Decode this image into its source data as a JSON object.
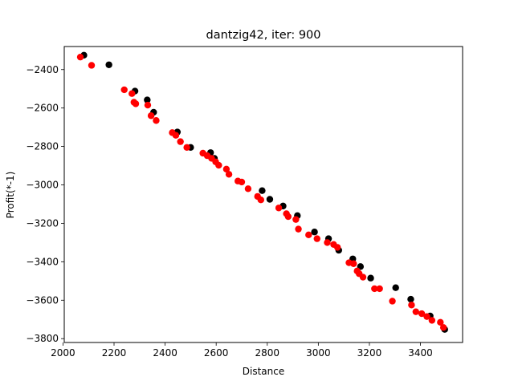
{
  "chart_data": {
    "type": "scatter",
    "title": "dantzig42, iter: 900",
    "xlabel": "Distance",
    "ylabel": "Profit(*-1)",
    "xlim": [
      2005,
      3565
    ],
    "ylim": [
      -3820,
      -2280
    ],
    "xticks": [
      2000,
      2200,
      2400,
      2600,
      2800,
      3000,
      3200,
      3400
    ],
    "yticks": [
      -2400,
      -2600,
      -2800,
      -3000,
      -3200,
      -3400,
      -3600,
      -3800
    ],
    "grid": false,
    "colors": {
      "black_series": "#000000",
      "red_series": "#ff0000"
    },
    "series": [
      {
        "color": "black",
        "points": [
          [
            2082,
            -2325
          ],
          [
            2180,
            -2375
          ],
          [
            2282,
            -2512
          ],
          [
            2330,
            -2558
          ],
          [
            2355,
            -2622
          ],
          [
            2448,
            -2725
          ],
          [
            2500,
            -2805
          ],
          [
            2578,
            -2832
          ],
          [
            2593,
            -2862
          ],
          [
            2780,
            -3030
          ],
          [
            2810,
            -3075
          ],
          [
            2862,
            -3110
          ],
          [
            2918,
            -3160
          ],
          [
            2985,
            -3245
          ],
          [
            3040,
            -3280
          ],
          [
            3080,
            -3340
          ],
          [
            3135,
            -3385
          ],
          [
            3165,
            -3425
          ],
          [
            3205,
            -3485
          ],
          [
            3303,
            -3535
          ],
          [
            3362,
            -3595
          ],
          [
            3438,
            -3682
          ],
          [
            3495,
            -3752
          ]
        ]
      },
      {
        "color": "red",
        "points": [
          [
            2068,
            -2335
          ],
          [
            2112,
            -2378
          ],
          [
            2240,
            -2505
          ],
          [
            2270,
            -2525
          ],
          [
            2278,
            -2570
          ],
          [
            2285,
            -2578
          ],
          [
            2332,
            -2585
          ],
          [
            2345,
            -2640
          ],
          [
            2365,
            -2665
          ],
          [
            2428,
            -2728
          ],
          [
            2442,
            -2742
          ],
          [
            2460,
            -2775
          ],
          [
            2485,
            -2805
          ],
          [
            2548,
            -2835
          ],
          [
            2565,
            -2848
          ],
          [
            2582,
            -2862
          ],
          [
            2598,
            -2880
          ],
          [
            2610,
            -2898
          ],
          [
            2640,
            -2918
          ],
          [
            2650,
            -2945
          ],
          [
            2685,
            -2980
          ],
          [
            2700,
            -2985
          ],
          [
            2725,
            -3020
          ],
          [
            2762,
            -3060
          ],
          [
            2775,
            -3078
          ],
          [
            2845,
            -3120
          ],
          [
            2875,
            -3150
          ],
          [
            2882,
            -3165
          ],
          [
            2912,
            -3180
          ],
          [
            2922,
            -3230
          ],
          [
            2962,
            -3260
          ],
          [
            2995,
            -3280
          ],
          [
            3035,
            -3300
          ],
          [
            3060,
            -3310
          ],
          [
            3075,
            -3325
          ],
          [
            3120,
            -3405
          ],
          [
            3138,
            -3410
          ],
          [
            3152,
            -3448
          ],
          [
            3160,
            -3462
          ],
          [
            3175,
            -3480
          ],
          [
            3220,
            -3540
          ],
          [
            3240,
            -3540
          ],
          [
            3290,
            -3605
          ],
          [
            3365,
            -3625
          ],
          [
            3382,
            -3660
          ],
          [
            3405,
            -3670
          ],
          [
            3425,
            -3685
          ],
          [
            3445,
            -3705
          ],
          [
            3478,
            -3715
          ],
          [
            3490,
            -3742
          ]
        ]
      }
    ]
  }
}
